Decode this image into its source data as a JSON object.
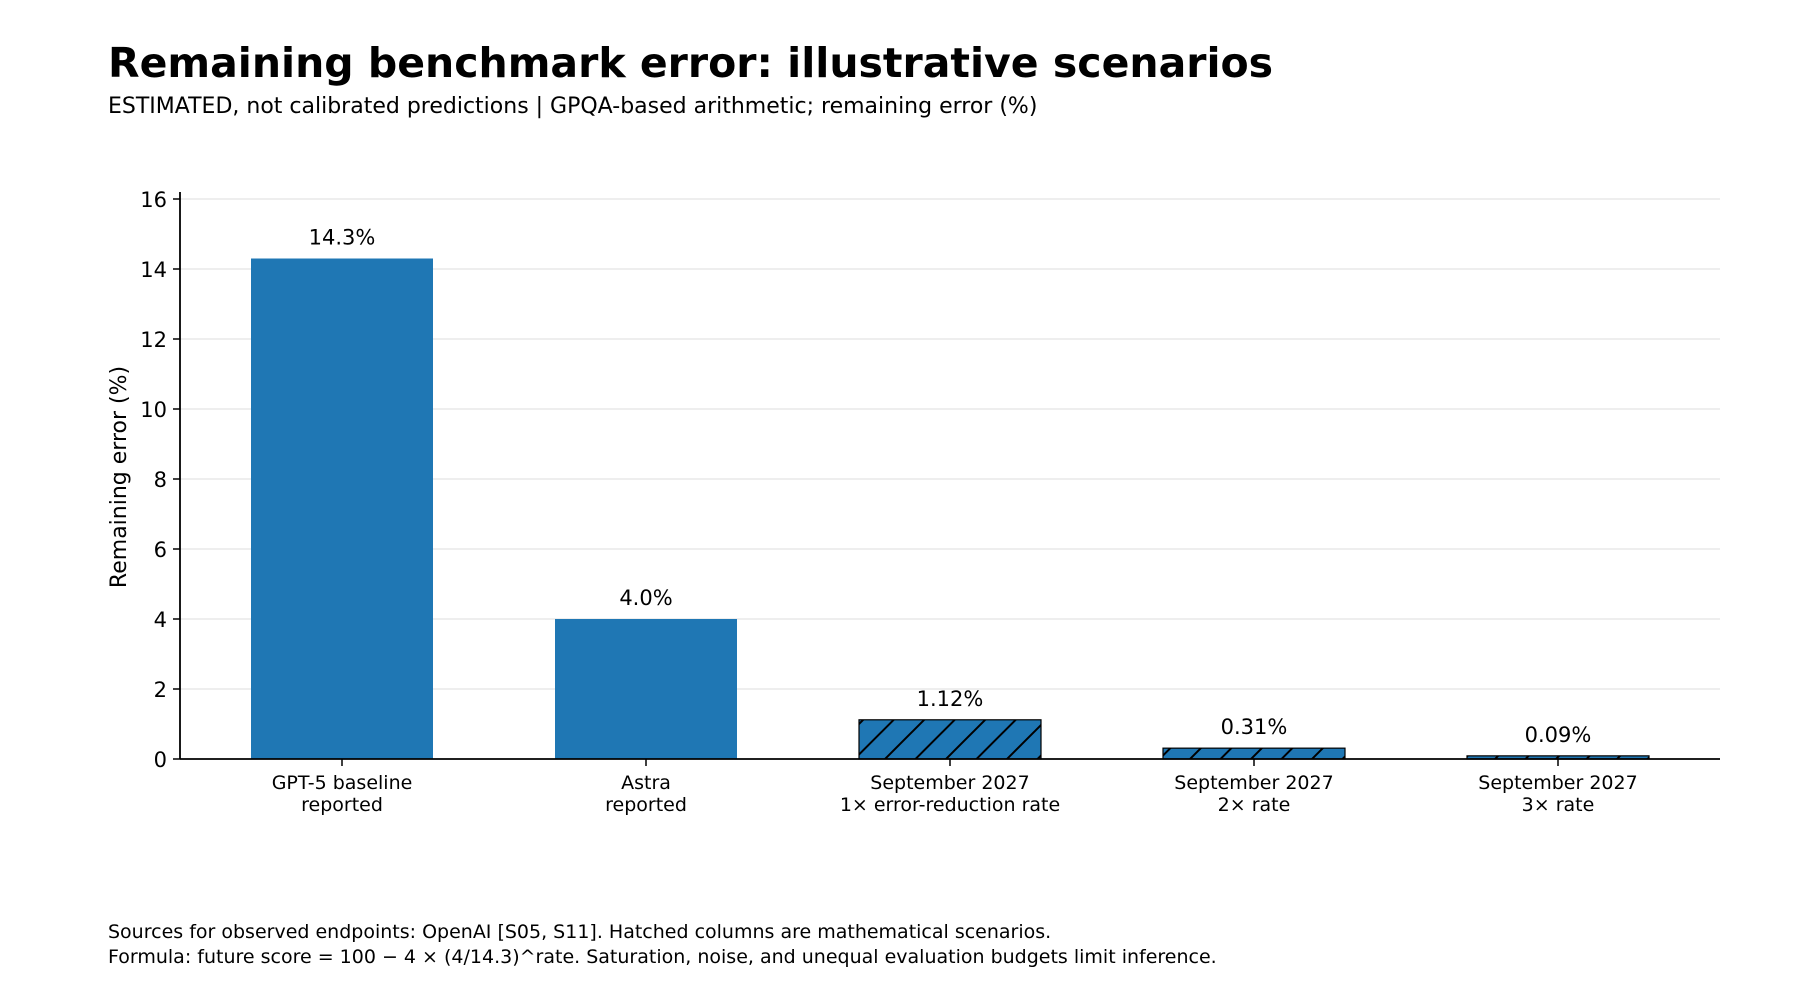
{
  "title": "Remaining benchmark error: illustrative scenarios",
  "subtitle": "ESTIMATED, not calibrated predictions | GPQA-based arithmetic; remaining error (%)",
  "footnotes": [
    "Sources for observed endpoints: OpenAI [S05, S11]. Hatched columns are mathematical scenarios.",
    "Formula: future score = 100 − 4 × (4/14.3)^rate. Saturation, noise, and unequal evaluation budgets limit inference."
  ],
  "colors": {
    "bar": "#1f77b4",
    "grid": "#e8e8e8",
    "axis": "#000000",
    "hatch": "#000000"
  },
  "chart_data": {
    "type": "bar",
    "categories": [
      [
        "GPT-5 baseline",
        "reported"
      ],
      [
        "Astra",
        "reported"
      ],
      [
        "September 2027",
        "1× error-reduction rate"
      ],
      [
        "September 2027",
        "2× rate"
      ],
      [
        "September 2027",
        "3× rate"
      ]
    ],
    "values": [
      14.3,
      4.0,
      1.12,
      0.31,
      0.09
    ],
    "data_labels": [
      "14.3%",
      "4.0%",
      "1.12%",
      "0.31%",
      "0.09%"
    ],
    "hatched": [
      false,
      false,
      true,
      true,
      true
    ],
    "ylabel": "Remaining error (%)",
    "xlabel": "",
    "ylim": [
      0,
      16
    ],
    "yticks": [
      0,
      2,
      4,
      6,
      8,
      10,
      12,
      14,
      16
    ],
    "grid": "horizontal"
  }
}
